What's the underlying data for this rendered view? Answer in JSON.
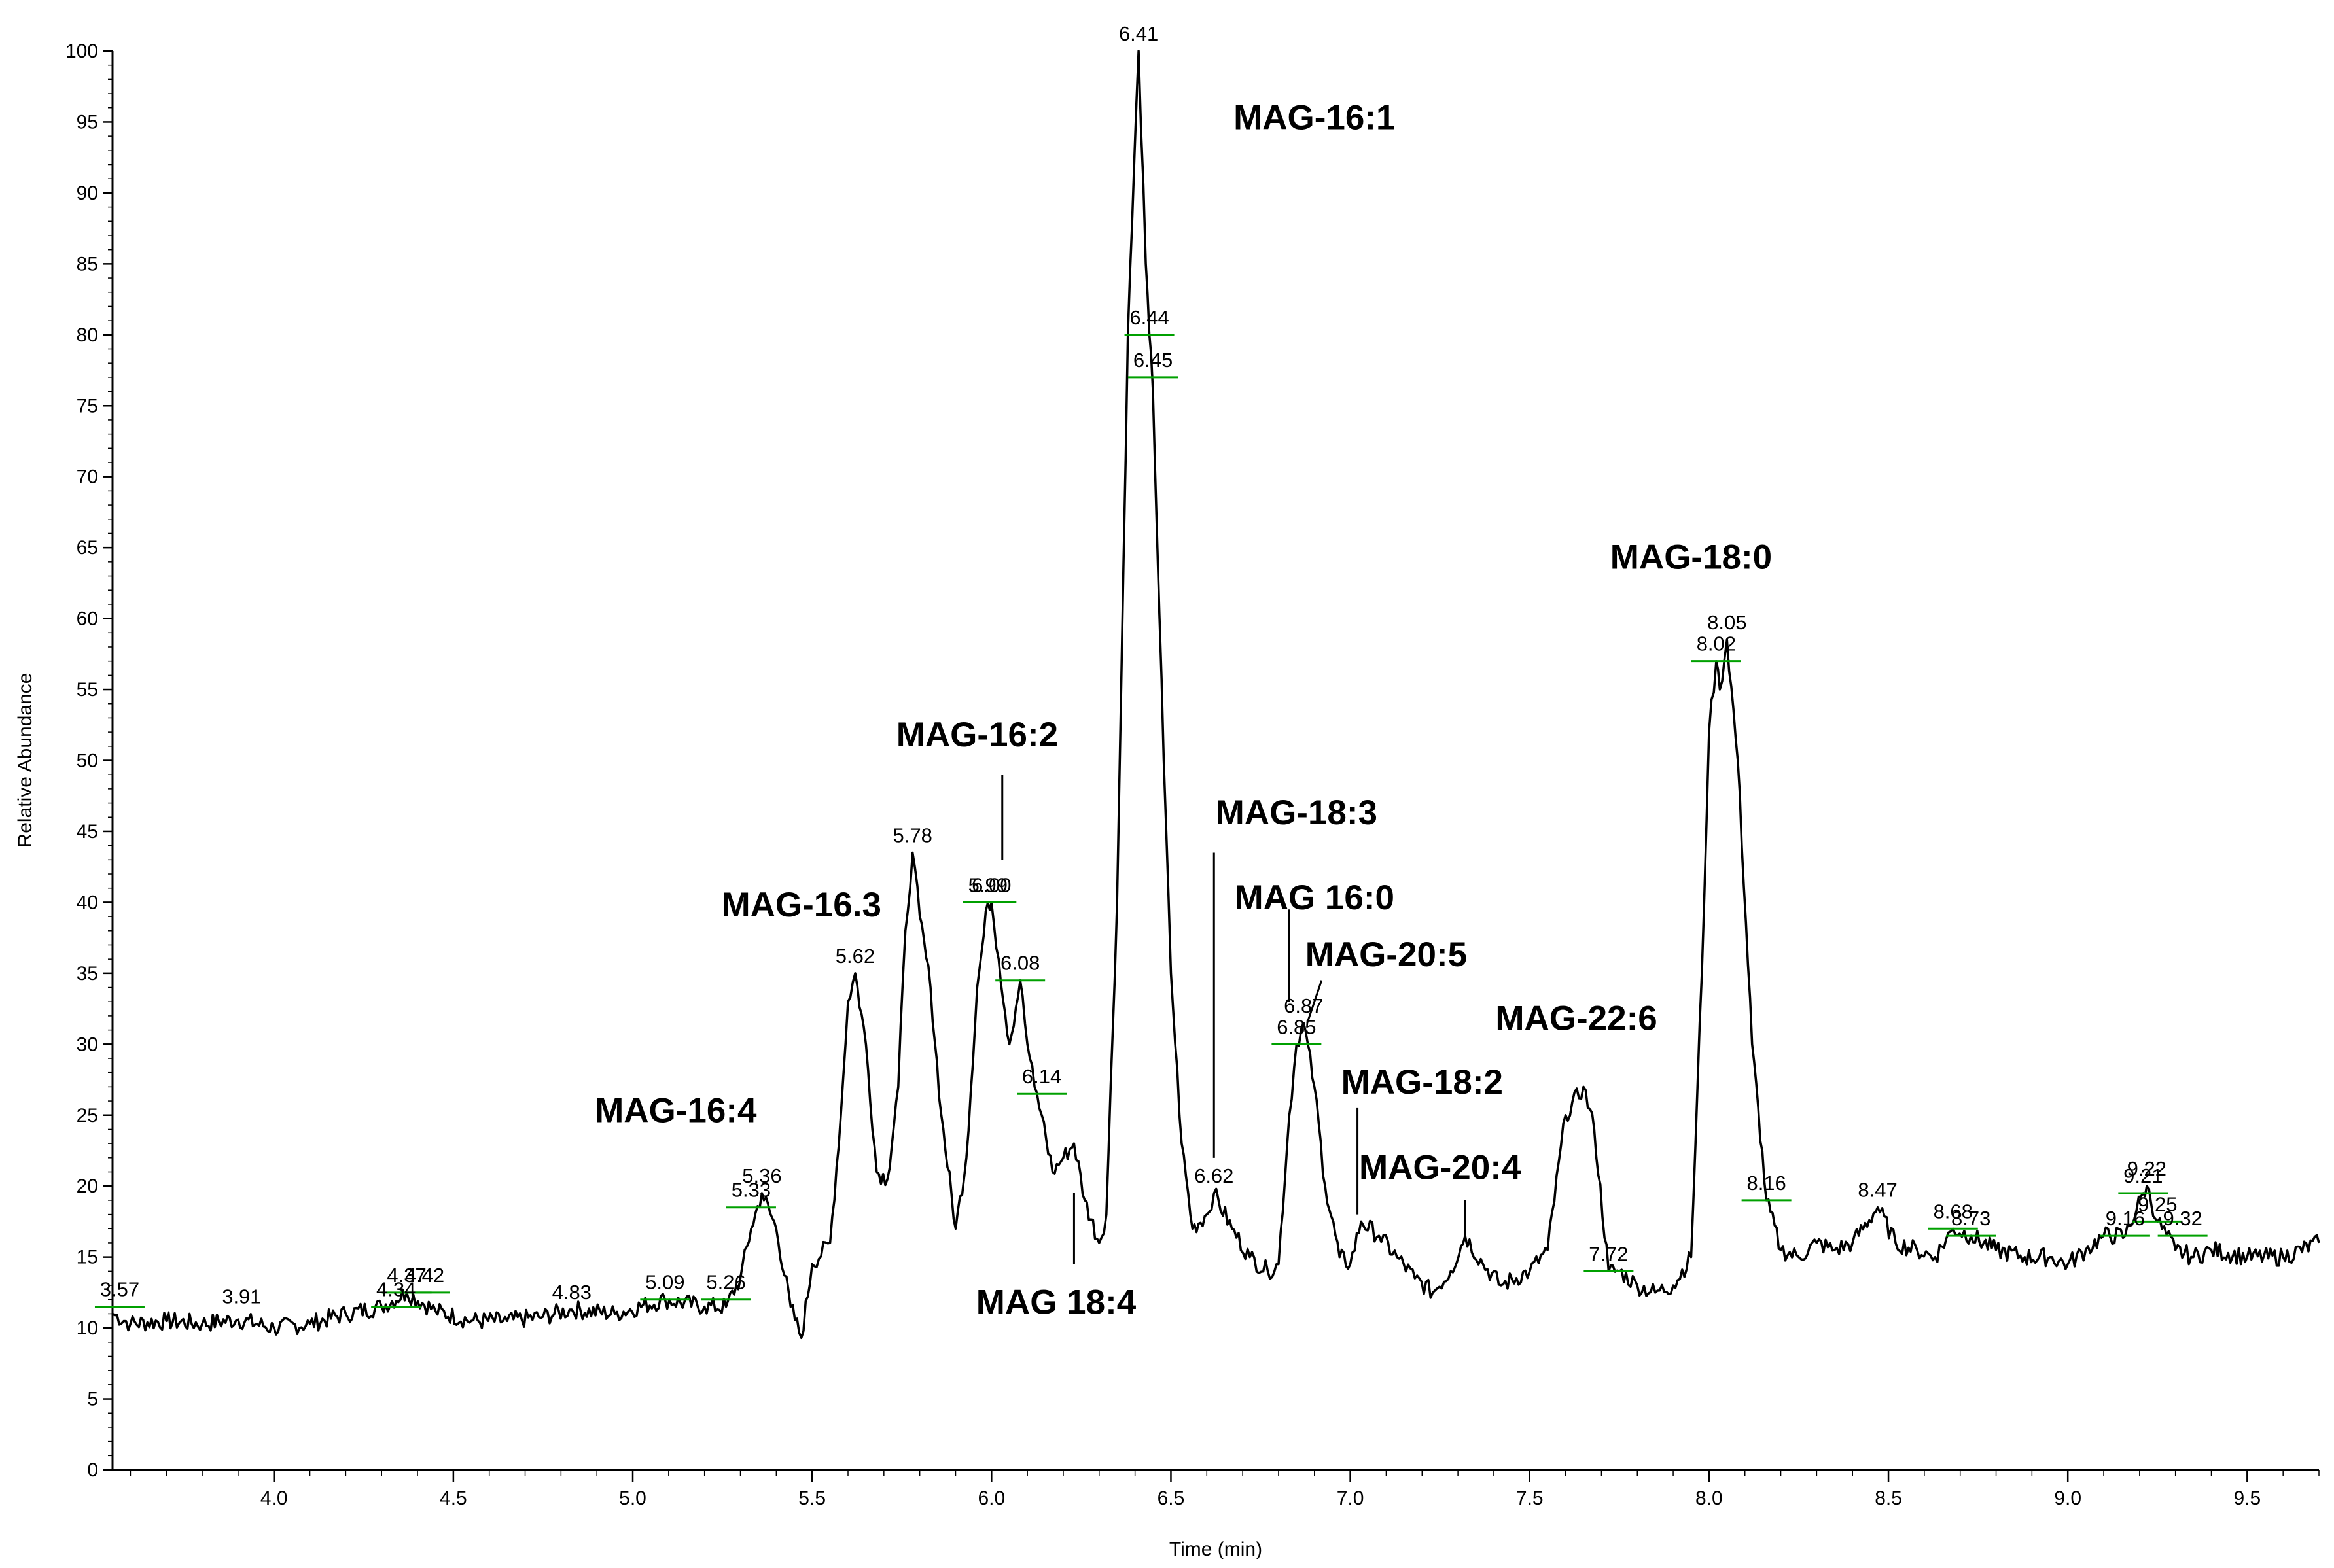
{
  "chart_data": {
    "type": "line",
    "xlabel": "Time (min)",
    "ylabel": "Relative Abundance",
    "xlim": [
      3.55,
      9.7
    ],
    "ylim": [
      0,
      100
    ],
    "x_ticks": [
      4.0,
      4.5,
      5.0,
      5.5,
      6.0,
      6.5,
      7.0,
      7.5,
      8.0,
      8.5,
      9.0,
      9.5
    ],
    "x_tick_labels": [
      "4.0",
      "4.5",
      "5.0",
      "5.5",
      "6.0",
      "6.5",
      "7.0",
      "7.5",
      "8.0",
      "8.5",
      "9.0",
      "9.5"
    ],
    "y_ticks": [
      0,
      5,
      10,
      15,
      20,
      25,
      30,
      35,
      40,
      45,
      50,
      55,
      60,
      65,
      70,
      75,
      80,
      85,
      90,
      95,
      100
    ],
    "y_tick_labels": [
      "0",
      "5",
      "10",
      "15",
      "20",
      "25",
      "30",
      "35",
      "40",
      "45",
      "50",
      "55",
      "60",
      "65",
      "70",
      "75",
      "80",
      "85",
      "90",
      "95",
      "100"
    ],
    "grid": false,
    "trace_color": "#000000",
    "marker_color": "#00a000",
    "series": [
      {
        "points": [
          [
            3.55,
            11.0
          ],
          [
            3.6,
            10.3
          ],
          [
            3.7,
            10.5
          ],
          [
            3.8,
            10.3
          ],
          [
            3.9,
            10.6
          ],
          [
            4.0,
            10.0
          ],
          [
            4.1,
            10.3
          ],
          [
            4.2,
            11.0
          ],
          [
            4.3,
            11.5
          ],
          [
            4.37,
            12.5
          ],
          [
            4.45,
            11.2
          ],
          [
            4.55,
            10.5
          ],
          [
            4.65,
            10.5
          ],
          [
            4.75,
            10.8
          ],
          [
            4.83,
            11.3
          ],
          [
            4.95,
            11.0
          ],
          [
            5.09,
            12.0
          ],
          [
            5.2,
            11.5
          ],
          [
            5.26,
            11.5
          ],
          [
            5.3,
            13.5
          ],
          [
            5.33,
            17.0
          ],
          [
            5.36,
            19.5
          ],
          [
            5.4,
            17.0
          ],
          [
            5.44,
            11.5
          ],
          [
            5.47,
            9.3
          ],
          [
            5.5,
            14.5
          ],
          [
            5.55,
            16.0
          ],
          [
            5.58,
            25.0
          ],
          [
            5.6,
            33.0
          ],
          [
            5.62,
            35.0
          ],
          [
            5.65,
            30.0
          ],
          [
            5.68,
            21.0
          ],
          [
            5.71,
            20.5
          ],
          [
            5.74,
            27.0
          ],
          [
            5.76,
            38.0
          ],
          [
            5.78,
            43.5
          ],
          [
            5.8,
            39.0
          ],
          [
            5.83,
            34.0
          ],
          [
            5.86,
            25.0
          ],
          [
            5.9,
            17.0
          ],
          [
            5.93,
            22.0
          ],
          [
            5.96,
            34.0
          ],
          [
            5.99,
            40.0
          ],
          [
            6.0,
            40.0
          ],
          [
            6.02,
            36.0
          ],
          [
            6.05,
            30.0
          ],
          [
            6.08,
            34.5
          ],
          [
            6.1,
            30.0
          ],
          [
            6.12,
            27.0
          ],
          [
            6.14,
            25.0
          ],
          [
            6.17,
            21.0
          ],
          [
            6.2,
            22.0
          ],
          [
            6.23,
            23.0
          ],
          [
            6.26,
            19.0
          ],
          [
            6.3,
            16.0
          ],
          [
            6.32,
            18.0
          ],
          [
            6.35,
            40.0
          ],
          [
            6.38,
            80.0
          ],
          [
            6.41,
            100.0
          ],
          [
            6.43,
            85.0
          ],
          [
            6.44,
            80.0
          ],
          [
            6.45,
            76.0
          ],
          [
            6.48,
            50.0
          ],
          [
            6.5,
            35.0
          ],
          [
            6.53,
            23.0
          ],
          [
            6.56,
            17.0
          ],
          [
            6.6,
            18.0
          ],
          [
            6.62,
            19.5
          ],
          [
            6.67,
            17.0
          ],
          [
            6.72,
            15.0
          ],
          [
            6.77,
            14.0
          ],
          [
            6.8,
            14.5
          ],
          [
            6.83,
            25.0
          ],
          [
            6.85,
            30.0
          ],
          [
            6.87,
            31.5
          ],
          [
            6.9,
            27.0
          ],
          [
            6.93,
            20.0
          ],
          [
            6.97,
            15.0
          ],
          [
            7.0,
            14.5
          ],
          [
            7.03,
            17.5
          ],
          [
            7.08,
            16.5
          ],
          [
            7.13,
            15.0
          ],
          [
            7.18,
            13.5
          ],
          [
            7.23,
            12.5
          ],
          [
            7.28,
            14.0
          ],
          [
            7.32,
            16.5
          ],
          [
            7.37,
            14.5
          ],
          [
            7.42,
            13.0
          ],
          [
            7.5,
            14.0
          ],
          [
            7.55,
            15.5
          ],
          [
            7.6,
            25.0
          ],
          [
            7.65,
            27.0
          ],
          [
            7.68,
            24.0
          ],
          [
            7.72,
            14.0
          ],
          [
            7.75,
            14.0
          ],
          [
            7.8,
            13.0
          ],
          [
            7.85,
            12.5
          ],
          [
            7.9,
            13.0
          ],
          [
            7.95,
            15.0
          ],
          [
            7.98,
            35.0
          ],
          [
            8.0,
            52.0
          ],
          [
            8.02,
            57.0
          ],
          [
            8.03,
            55.0
          ],
          [
            8.05,
            58.5
          ],
          [
            8.08,
            50.0
          ],
          [
            8.12,
            30.0
          ],
          [
            8.16,
            19.0
          ],
          [
            8.2,
            15.5
          ],
          [
            8.25,
            15.0
          ],
          [
            8.3,
            16.0
          ],
          [
            8.35,
            15.5
          ],
          [
            8.4,
            16.0
          ],
          [
            8.47,
            18.5
          ],
          [
            8.52,
            16.0
          ],
          [
            8.58,
            15.5
          ],
          [
            8.63,
            15.0
          ],
          [
            8.68,
            17.0
          ],
          [
            8.73,
            16.5
          ],
          [
            8.8,
            15.5
          ],
          [
            8.88,
            15.0
          ],
          [
            8.95,
            15.0
          ],
          [
            9.0,
            14.5
          ],
          [
            9.05,
            15.5
          ],
          [
            9.1,
            16.5
          ],
          [
            9.16,
            16.5
          ],
          [
            9.21,
            19.5
          ],
          [
            9.22,
            20.0
          ],
          [
            9.25,
            17.5
          ],
          [
            9.3,
            15.5
          ],
          [
            9.35,
            15.0
          ],
          [
            9.4,
            15.5
          ],
          [
            9.5,
            15.0
          ],
          [
            9.6,
            15.0
          ],
          [
            9.7,
            16.0
          ]
        ]
      }
    ],
    "peak_labels": [
      {
        "text": "3.57",
        "x": 3.57,
        "y": 11.5,
        "marker": true
      },
      {
        "text": "3.91",
        "x": 3.91,
        "y": 11.0,
        "marker": false
      },
      {
        "text": "4.34",
        "x": 4.34,
        "y": 11.5,
        "marker": true
      },
      {
        "text": "4.37",
        "x": 4.37,
        "y": 12.5,
        "marker": true
      },
      {
        "text": "4.42",
        "x": 4.42,
        "y": 12.5,
        "marker": true
      },
      {
        "text": "4.83",
        "x": 4.83,
        "y": 11.3,
        "marker": false
      },
      {
        "text": "5.09",
        "x": 5.09,
        "y": 12.0,
        "marker": true
      },
      {
        "text": "5.26",
        "x": 5.26,
        "y": 12.0,
        "marker": true
      },
      {
        "text": "5.33",
        "x": 5.33,
        "y": 18.5,
        "marker": true
      },
      {
        "text": "5.36",
        "x": 5.36,
        "y": 19.5,
        "marker": false
      },
      {
        "text": "5.62",
        "x": 5.62,
        "y": 35.0,
        "marker": false
      },
      {
        "text": "5.78",
        "x": 5.78,
        "y": 43.5,
        "marker": false
      },
      {
        "text": "6.00",
        "x": 6.0,
        "y": 40.0,
        "marker": true
      },
      {
        "text": "5.99",
        "x": 5.99,
        "y": 40.0,
        "marker": true
      },
      {
        "text": "6.08",
        "x": 6.08,
        "y": 34.5,
        "marker": true
      },
      {
        "text": "6.14",
        "x": 6.14,
        "y": 26.5,
        "marker": true
      },
      {
        "text": "6.41",
        "x": 6.41,
        "y": 100.0,
        "marker": false
      },
      {
        "text": "6.44",
        "x": 6.44,
        "y": 80.0,
        "marker": true
      },
      {
        "text": "6.45",
        "x": 6.45,
        "y": 77.0,
        "marker": true
      },
      {
        "text": "6.62",
        "x": 6.62,
        "y": 19.5,
        "marker": false
      },
      {
        "text": "6.85",
        "x": 6.85,
        "y": 30.0,
        "marker": true
      },
      {
        "text": "6.87",
        "x": 6.87,
        "y": 31.5,
        "marker": false
      },
      {
        "text": "7.72",
        "x": 7.72,
        "y": 14.0,
        "marker": true
      },
      {
        "text": "8.02",
        "x": 8.02,
        "y": 57.0,
        "marker": true
      },
      {
        "text": "8.05",
        "x": 8.05,
        "y": 58.5,
        "marker": false
      },
      {
        "text": "8.16",
        "x": 8.16,
        "y": 19.0,
        "marker": true
      },
      {
        "text": "8.47",
        "x": 8.47,
        "y": 18.5,
        "marker": false
      },
      {
        "text": "8.68",
        "x": 8.68,
        "y": 17.0,
        "marker": true
      },
      {
        "text": "8.73",
        "x": 8.73,
        "y": 16.5,
        "marker": true
      },
      {
        "text": "9.16",
        "x": 9.16,
        "y": 16.5,
        "marker": true
      },
      {
        "text": "9.21",
        "x": 9.21,
        "y": 19.5,
        "marker": true
      },
      {
        "text": "9.22",
        "x": 9.22,
        "y": 20.0,
        "marker": false
      },
      {
        "text": "9.25",
        "x": 9.25,
        "y": 17.5,
        "marker": true
      },
      {
        "text": "9.32",
        "x": 9.32,
        "y": 16.5,
        "marker": true
      }
    ],
    "annotations": [
      {
        "text": "MAG-16:1",
        "x": 6.9,
        "y": 94.5
      },
      {
        "text": "MAG-18:0",
        "x": 7.95,
        "y": 63.5
      },
      {
        "text": "MAG-16:2",
        "x": 5.96,
        "y": 51.0
      },
      {
        "text": "MAG-18:3",
        "x": 6.85,
        "y": 45.5
      },
      {
        "text": "MAG 16:0",
        "x": 6.9,
        "y": 39.5
      },
      {
        "text": "MAG-16.3",
        "x": 5.47,
        "y": 39.0
      },
      {
        "text": "MAG-20:5",
        "x": 7.1,
        "y": 35.5
      },
      {
        "text": "MAG-22:6",
        "x": 7.63,
        "y": 31.0
      },
      {
        "text": "MAG-18:2",
        "x": 7.2,
        "y": 26.5
      },
      {
        "text": "MAG-16:4",
        "x": 5.12,
        "y": 24.5
      },
      {
        "text": "MAG-20:4",
        "x": 7.25,
        "y": 20.5
      },
      {
        "text": "MAG 18:4",
        "x": 6.18,
        "y": 11.0
      }
    ],
    "leader_lines": [
      {
        "x1": 6.03,
        "y1": 49.0,
        "x2": 6.03,
        "y2": 43.0
      },
      {
        "x1": 6.62,
        "y1": 43.5,
        "x2": 6.62,
        "y2": 22.0
      },
      {
        "x1": 6.83,
        "y1": 39.5,
        "x2": 6.83,
        "y2": 33.0
      },
      {
        "x1": 6.92,
        "y1": 34.5,
        "x2": 6.88,
        "y2": 31.5
      },
      {
        "x1": 7.02,
        "y1": 25.5,
        "x2": 7.02,
        "y2": 18.0
      },
      {
        "x1": 7.32,
        "y1": 19.0,
        "x2": 7.32,
        "y2": 16.5
      },
      {
        "x1": 6.23,
        "y1": 14.5,
        "x2": 6.23,
        "y2": 19.5
      }
    ]
  }
}
